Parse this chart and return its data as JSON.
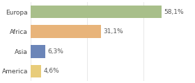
{
  "categories": [
    "Europa",
    "Africa",
    "Asia",
    "America"
  ],
  "values": [
    58.1,
    31.1,
    6.3,
    4.6
  ],
  "labels": [
    "58,1%",
    "31,1%",
    "6,3%",
    "4,6%"
  ],
  "bar_colors": [
    "#a8bf8a",
    "#e8b47a",
    "#6b85b8",
    "#e8cc7a"
  ],
  "background_color": "#ffffff",
  "xlim": [
    0,
    72
  ],
  "bar_height": 0.65,
  "label_fontsize": 6.5,
  "tick_fontsize": 6.5,
  "grid_color": "#dddddd",
  "grid_ticks": [
    0,
    25,
    50
  ]
}
